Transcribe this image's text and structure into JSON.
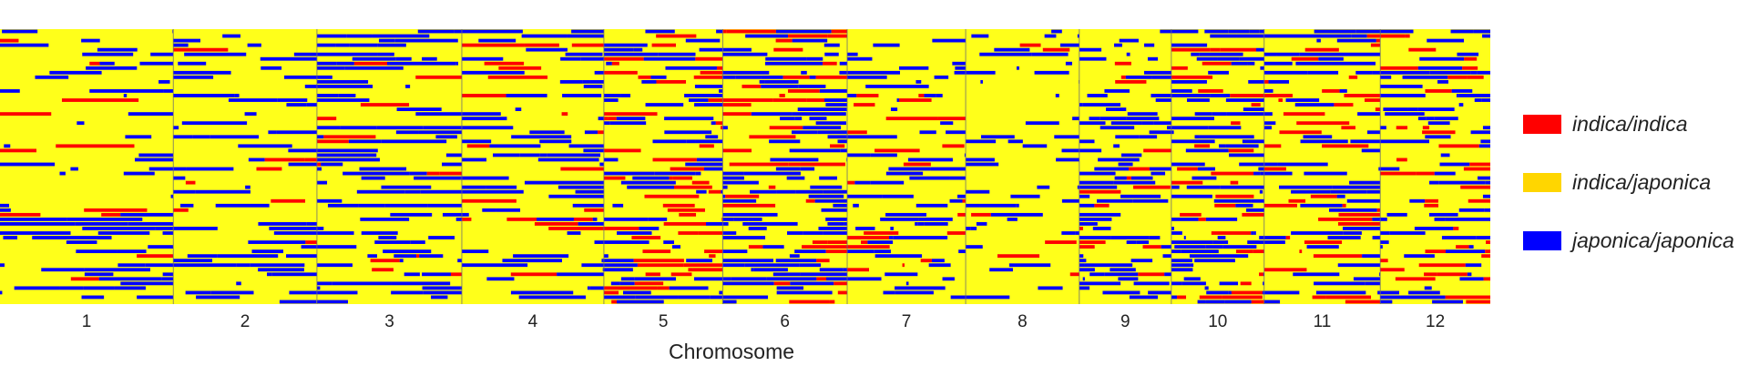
{
  "chart_data": {
    "type": "heatmap",
    "title": "",
    "xlabel": "Chromosome",
    "ylabel": "",
    "categories": [
      "1",
      "2",
      "3",
      "4",
      "5",
      "6",
      "7",
      "8",
      "9",
      "10",
      "11",
      "12"
    ],
    "relative_lengths": [
      43.3,
      35.9,
      36.2,
      35.5,
      29.7,
      31.1,
      29.6,
      28.4,
      23.0,
      23.2,
      29.0,
      27.5
    ],
    "genotype_classes": [
      {
        "name": "indica/indica",
        "color": "#ff0000"
      },
      {
        "name": "indica/japonica",
        "color": "#ffff1a"
      },
      {
        "name": "japonica/japonica",
        "color": "#0000ff"
      }
    ],
    "legend": {
      "position": "right",
      "items": [
        "indica/indica",
        "indica/japonica",
        "japonica/japonica"
      ]
    },
    "n_lines": 60,
    "dominant_class": "indica/japonica",
    "japonica_prevalence_by_chromosome": [
      0.22,
      0.22,
      0.27,
      0.28,
      0.22,
      0.34,
      0.22,
      0.17,
      0.3,
      0.33,
      0.24,
      0.27
    ],
    "indica_prevalence_by_chromosome": [
      0.04,
      0.04,
      0.05,
      0.04,
      0.18,
      0.17,
      0.08,
      0.03,
      0.07,
      0.12,
      0.11,
      0.14
    ]
  }
}
